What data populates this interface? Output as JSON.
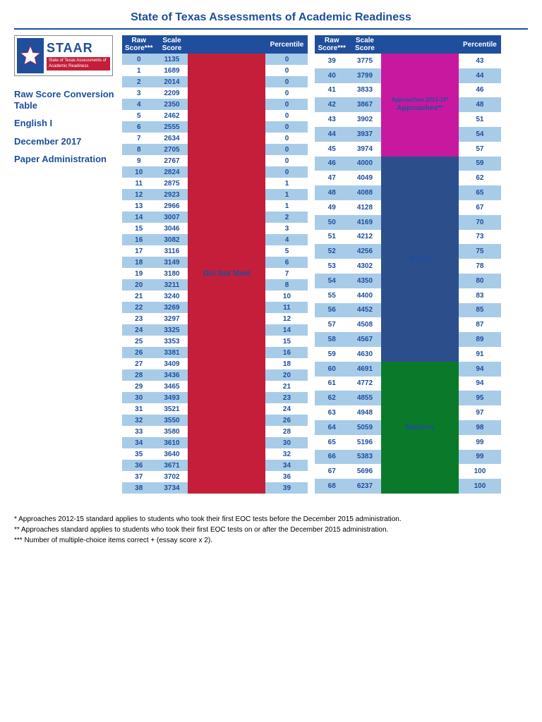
{
  "title": "State of Texas Assessments of Academic Readiness",
  "logo": {
    "name": "STAAR",
    "subtitle": "State of Texas Assessments of Academic Readiness"
  },
  "sidebar": {
    "line1": "Raw Score Conversion Table",
    "line2": "English I",
    "line3": "December 2017",
    "line4": "Paper Administration"
  },
  "headers": {
    "raw": "Raw Score***",
    "scale": "Scale Score",
    "pct": "Percentile"
  },
  "categories": {
    "dnm": "Did Not Meet",
    "app_sub": "Approaches 2012-15*",
    "app": "Approaches**",
    "meets": "Meets",
    "masters": "Masters"
  },
  "colors": {
    "header_bg": "#1f4e9c",
    "alt_row": "#a8cce8",
    "dnm": "#c41e3a",
    "app": "#c818a0",
    "meets": "#2c4f8c",
    "masters": "#0a7a2a"
  },
  "table1": [
    {
      "raw": 0,
      "scale": 1135,
      "pct": 0,
      "alt": true
    },
    {
      "raw": 1,
      "scale": 1689,
      "pct": 0,
      "alt": false
    },
    {
      "raw": 2,
      "scale": 2014,
      "pct": 0,
      "alt": true
    },
    {
      "raw": 3,
      "scale": 2209,
      "pct": 0,
      "alt": false
    },
    {
      "raw": 4,
      "scale": 2350,
      "pct": 0,
      "alt": true
    },
    {
      "raw": 5,
      "scale": 2462,
      "pct": 0,
      "alt": false
    },
    {
      "raw": 6,
      "scale": 2555,
      "pct": 0,
      "alt": true
    },
    {
      "raw": 7,
      "scale": 2634,
      "pct": 0,
      "alt": false
    },
    {
      "raw": 8,
      "scale": 2705,
      "pct": 0,
      "alt": true
    },
    {
      "raw": 9,
      "scale": 2767,
      "pct": 0,
      "alt": false
    },
    {
      "raw": 10,
      "scale": 2824,
      "pct": 0,
      "alt": true
    },
    {
      "raw": 11,
      "scale": 2875,
      "pct": 1,
      "alt": false
    },
    {
      "raw": 12,
      "scale": 2923,
      "pct": 1,
      "alt": true
    },
    {
      "raw": 13,
      "scale": 2966,
      "pct": 1,
      "alt": false
    },
    {
      "raw": 14,
      "scale": 3007,
      "pct": 2,
      "alt": true
    },
    {
      "raw": 15,
      "scale": 3046,
      "pct": 3,
      "alt": false
    },
    {
      "raw": 16,
      "scale": 3082,
      "pct": 4,
      "alt": true
    },
    {
      "raw": 17,
      "scale": 3116,
      "pct": 5,
      "alt": false
    },
    {
      "raw": 18,
      "scale": 3149,
      "pct": 6,
      "alt": true
    },
    {
      "raw": 19,
      "scale": 3180,
      "pct": 7,
      "alt": false
    },
    {
      "raw": 20,
      "scale": 3211,
      "pct": 8,
      "alt": true
    },
    {
      "raw": 21,
      "scale": 3240,
      "pct": 10,
      "alt": false
    },
    {
      "raw": 22,
      "scale": 3269,
      "pct": 11,
      "alt": true
    },
    {
      "raw": 23,
      "scale": 3297,
      "pct": 12,
      "alt": false
    },
    {
      "raw": 24,
      "scale": 3325,
      "pct": 14,
      "alt": true
    },
    {
      "raw": 25,
      "scale": 3353,
      "pct": 15,
      "alt": false
    },
    {
      "raw": 26,
      "scale": 3381,
      "pct": 16,
      "alt": true
    },
    {
      "raw": 27,
      "scale": 3409,
      "pct": 18,
      "alt": false
    },
    {
      "raw": 28,
      "scale": 3436,
      "pct": 20,
      "alt": true
    },
    {
      "raw": 29,
      "scale": 3465,
      "pct": 21,
      "alt": false
    },
    {
      "raw": 30,
      "scale": 3493,
      "pct": 23,
      "alt": true
    },
    {
      "raw": 31,
      "scale": 3521,
      "pct": 24,
      "alt": false
    },
    {
      "raw": 32,
      "scale": 3550,
      "pct": 26,
      "alt": true
    },
    {
      "raw": 33,
      "scale": 3580,
      "pct": 28,
      "alt": false
    },
    {
      "raw": 34,
      "scale": 3610,
      "pct": 30,
      "alt": true
    },
    {
      "raw": 35,
      "scale": 3640,
      "pct": 32,
      "alt": false
    },
    {
      "raw": 36,
      "scale": 3671,
      "pct": 34,
      "alt": true
    },
    {
      "raw": 37,
      "scale": 3702,
      "pct": 36,
      "alt": false
    },
    {
      "raw": 38,
      "scale": 3734,
      "pct": 39,
      "alt": true
    }
  ],
  "table2": [
    {
      "raw": 39,
      "scale": 3775,
      "pct": 43,
      "alt": false,
      "cat": "app"
    },
    {
      "raw": 40,
      "scale": 3799,
      "pct": 44,
      "alt": true,
      "cat": "app"
    },
    {
      "raw": 41,
      "scale": 3833,
      "pct": 46,
      "alt": false,
      "cat": "app"
    },
    {
      "raw": 42,
      "scale": 3867,
      "pct": 48,
      "alt": true,
      "cat": "app"
    },
    {
      "raw": 43,
      "scale": 3902,
      "pct": 51,
      "alt": false,
      "cat": "app"
    },
    {
      "raw": 44,
      "scale": 3937,
      "pct": 54,
      "alt": true,
      "cat": "app"
    },
    {
      "raw": 45,
      "scale": 3974,
      "pct": 57,
      "alt": false,
      "cat": "app"
    },
    {
      "raw": 46,
      "scale": 4000,
      "pct": 59,
      "alt": true,
      "cat": "meets"
    },
    {
      "raw": 47,
      "scale": 4049,
      "pct": 62,
      "alt": false,
      "cat": "meets"
    },
    {
      "raw": 48,
      "scale": 4088,
      "pct": 65,
      "alt": true,
      "cat": "meets"
    },
    {
      "raw": 49,
      "scale": 4128,
      "pct": 67,
      "alt": false,
      "cat": "meets"
    },
    {
      "raw": 50,
      "scale": 4169,
      "pct": 70,
      "alt": true,
      "cat": "meets"
    },
    {
      "raw": 51,
      "scale": 4212,
      "pct": 73,
      "alt": false,
      "cat": "meets"
    },
    {
      "raw": 52,
      "scale": 4256,
      "pct": 75,
      "alt": true,
      "cat": "meets"
    },
    {
      "raw": 53,
      "scale": 4302,
      "pct": 78,
      "alt": false,
      "cat": "meets"
    },
    {
      "raw": 54,
      "scale": 4350,
      "pct": 80,
      "alt": true,
      "cat": "meets"
    },
    {
      "raw": 55,
      "scale": 4400,
      "pct": 83,
      "alt": false,
      "cat": "meets"
    },
    {
      "raw": 56,
      "scale": 4452,
      "pct": 85,
      "alt": true,
      "cat": "meets"
    },
    {
      "raw": 57,
      "scale": 4508,
      "pct": 87,
      "alt": false,
      "cat": "meets"
    },
    {
      "raw": 58,
      "scale": 4567,
      "pct": 89,
      "alt": true,
      "cat": "meets"
    },
    {
      "raw": 59,
      "scale": 4630,
      "pct": 91,
      "alt": false,
      "cat": "meets"
    },
    {
      "raw": 60,
      "scale": 4691,
      "pct": 94,
      "alt": true,
      "cat": "masters"
    },
    {
      "raw": 61,
      "scale": 4772,
      "pct": 94,
      "alt": false,
      "cat": "masters"
    },
    {
      "raw": 62,
      "scale": 4855,
      "pct": 95,
      "alt": true,
      "cat": "masters"
    },
    {
      "raw": 63,
      "scale": 4948,
      "pct": 97,
      "alt": false,
      "cat": "masters"
    },
    {
      "raw": 64,
      "scale": 5059,
      "pct": 98,
      "alt": true,
      "cat": "masters"
    },
    {
      "raw": 65,
      "scale": 5196,
      "pct": 99,
      "alt": false,
      "cat": "masters"
    },
    {
      "raw": 66,
      "scale": 5383,
      "pct": 99,
      "alt": true,
      "cat": "masters"
    },
    {
      "raw": 67,
      "scale": 5696,
      "pct": 100,
      "alt": false,
      "cat": "masters"
    },
    {
      "raw": 68,
      "scale": 6237,
      "pct": 100,
      "alt": true,
      "cat": "masters"
    }
  ],
  "footnotes": {
    "f1": "* Approaches 2012-15 standard applies to students who took their first EOC tests before the December 2015 administration.",
    "f2": "** Approaches standard applies to students who took their first EOC tests on or after the December 2015 administration.",
    "f3": "*** Number of multiple-choice items correct + (essay score x 2)."
  }
}
